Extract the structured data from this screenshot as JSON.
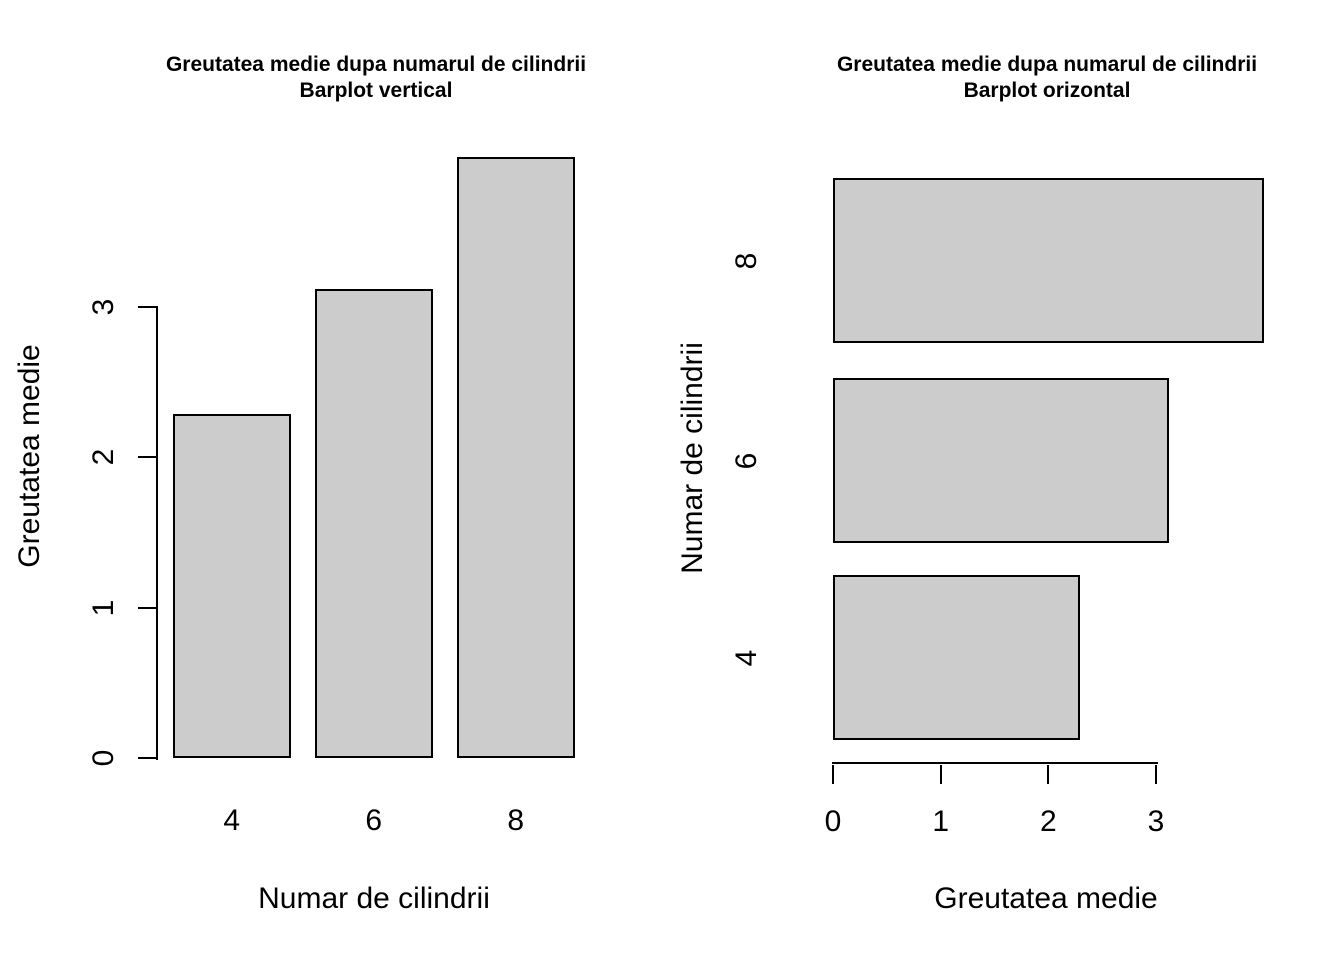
{
  "figure": {
    "background": "#ffffff",
    "text_color": "#000000"
  },
  "colors": {
    "bar_fill": "#cccccc",
    "bar_border": "#000000",
    "axis": "#000000"
  },
  "chart_data": [
    {
      "type": "bar",
      "orientation": "vertical",
      "title": "Greutatea medie dupa numarul de cilindrii",
      "subtitle": "Barplot vertical",
      "categories": [
        "4",
        "6",
        "8"
      ],
      "values": [
        2.29,
        3.12,
        4.0
      ],
      "xlabel": "Numar de cilindrii",
      "ylabel": "Greutatea medie",
      "value_axis_ticks": [
        "0",
        "1",
        "2",
        "3"
      ],
      "value_axis_tick_values": [
        0,
        1,
        2,
        3
      ],
      "value_axis_lim": [
        0,
        4.0
      ],
      "grid": false,
      "legend": false
    },
    {
      "type": "bar",
      "orientation": "horizontal",
      "title": "Greutatea medie dupa numarul de cilindrii",
      "subtitle": "Barplot orizontal",
      "categories": [
        "4",
        "6",
        "8"
      ],
      "values": [
        2.29,
        3.12,
        4.0
      ],
      "xlabel": "Greutatea medie",
      "ylabel": "Numar de cilindrii",
      "value_axis_ticks": [
        "0",
        "1",
        "2",
        "3"
      ],
      "value_axis_tick_values": [
        0,
        1,
        2,
        3
      ],
      "value_axis_lim": [
        0,
        4.0
      ],
      "grid": false,
      "legend": false
    }
  ]
}
